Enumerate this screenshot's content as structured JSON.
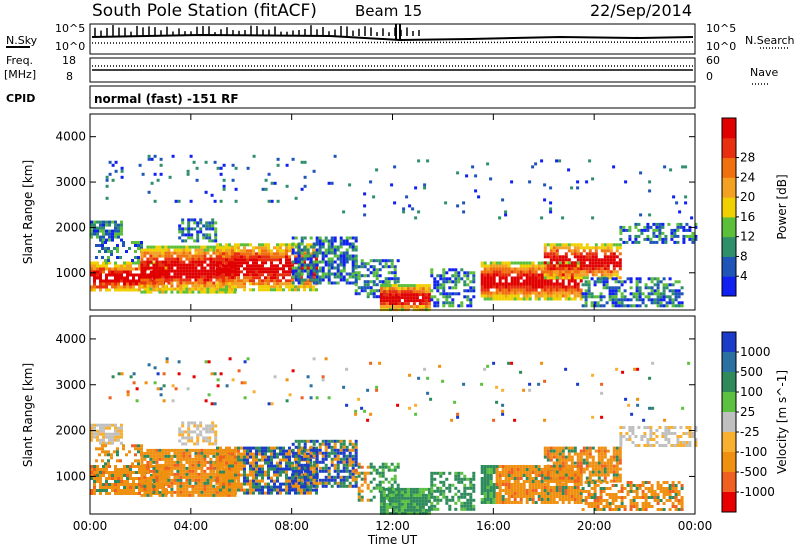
{
  "header": {
    "station": "South Pole Station (fitACF)",
    "beam": "Beam 15",
    "date": "22/Sep/2014"
  },
  "strip_labels": {
    "nsky": "N.Sky",
    "nsky_top": "10^5",
    "nsky_bottom": "10^0",
    "nsearch": "N.Search",
    "nsearch_top": "10^5",
    "nsearch_bottom": "10^0",
    "freq_line1": "Freq.",
    "freq_line2": "[MHz]",
    "freq_top": "18",
    "freq_bottom": "8",
    "nave": "Nave",
    "nave_top": "60",
    "nave_bottom": "0",
    "cpid": "CPID",
    "mode": "normal (fast) -151 RF"
  },
  "chart_data": [
    {
      "type": "heatmap",
      "quantity": "Power",
      "ylabel": "Slant Range [km]",
      "xlabel": "",
      "ylim": [
        180,
        4500
      ],
      "yticks": [
        "1000",
        "2000",
        "3000",
        "4000"
      ],
      "colorbar": {
        "label": "Power [dB]",
        "ticks": [
          "4",
          "8",
          "12",
          "16",
          "20",
          "24",
          "28"
        ],
        "colors": [
          "#1020f0",
          "#1f55b8",
          "#2f8f6a",
          "#5bbf3a",
          "#f0d000",
          "#f4a020",
          "#f07010",
          "#e83010",
          "#e00000"
        ]
      }
    },
    {
      "type": "heatmap",
      "quantity": "Velocity",
      "ylabel": "Slant Range [km]",
      "xlabel": "Time UT",
      "ylim": [
        180,
        4500
      ],
      "yticks": [
        "1000",
        "2000",
        "3000",
        "4000"
      ],
      "xticks": [
        "00:00",
        "04:00",
        "08:00",
        "12:00",
        "16:00",
        "20:00",
        "00:00"
      ],
      "colorbar": {
        "label": "Velocity [m s^-1]",
        "ticks": [
          "1000",
          "500",
          "100",
          "25",
          "-25",
          "-100",
          "-500",
          "-1000"
        ],
        "colors": [
          "#1a3cc8",
          "#2a70a0",
          "#2e8a5a",
          "#5cc040",
          "#c0c0c0",
          "#f8b030",
          "#f09010",
          "#f06020",
          "#e80000"
        ]
      }
    }
  ]
}
